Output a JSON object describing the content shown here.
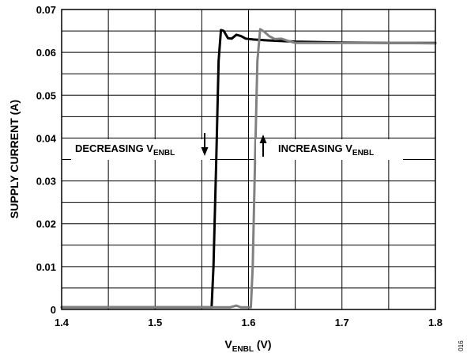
{
  "chart_data": {
    "type": "line",
    "xlabel": {
      "main": "V",
      "sub": "ENBL",
      "suffix": " (V)"
    },
    "ylabel": "SUPPLY CURRENT (A)",
    "xlim": [
      1.4,
      1.8
    ],
    "ylim": [
      0,
      0.07
    ],
    "x_ticks": [
      1.4,
      1.5,
      1.6,
      1.7,
      1.8
    ],
    "x_tick_labels": [
      "1.4",
      "1.5",
      "1.6",
      "1.7",
      "1.8"
    ],
    "y_ticks": [
      0,
      0.01,
      0.02,
      0.03,
      0.04,
      0.05,
      0.06,
      0.07
    ],
    "y_tick_labels": [
      "0",
      "0.01",
      "0.02",
      "0.03",
      "0.04",
      "0.05",
      "0.06",
      "0.07"
    ],
    "grid": {
      "x_step": 0.05,
      "y_step": 0.005
    },
    "series": [
      {
        "color": "#000000",
        "points": [
          [
            1.4,
            0.0005
          ],
          [
            1.5,
            0.0005
          ],
          [
            1.55,
            0.0005
          ],
          [
            1.5605,
            0.0005
          ],
          [
            1.5625,
            0.01
          ],
          [
            1.5655,
            0.035
          ],
          [
            1.568,
            0.058
          ],
          [
            1.5705,
            0.0652
          ],
          [
            1.5735,
            0.065
          ],
          [
            1.578,
            0.0633
          ],
          [
            1.582,
            0.0632
          ],
          [
            1.587,
            0.0641
          ],
          [
            1.592,
            0.0638
          ],
          [
            1.597,
            0.0632
          ],
          [
            1.605,
            0.063
          ],
          [
            1.62,
            0.0628
          ],
          [
            1.65,
            0.0625
          ],
          [
            1.7,
            0.0623
          ],
          [
            1.75,
            0.0622
          ],
          [
            1.8,
            0.0622
          ]
        ]
      },
      {
        "color": "#808080",
        "points": [
          [
            1.4,
            0.0005
          ],
          [
            1.5,
            0.0005
          ],
          [
            1.58,
            0.0005
          ],
          [
            1.587,
            0.0009
          ],
          [
            1.592,
            0.0005
          ],
          [
            1.6,
            0.0005
          ],
          [
            1.6025,
            0.0005
          ],
          [
            1.6045,
            0.01
          ],
          [
            1.607,
            0.035
          ],
          [
            1.6095,
            0.058
          ],
          [
            1.6125,
            0.0654
          ],
          [
            1.617,
            0.0648
          ],
          [
            1.622,
            0.0638
          ],
          [
            1.628,
            0.0631
          ],
          [
            1.635,
            0.0632
          ],
          [
            1.642,
            0.0627
          ],
          [
            1.65,
            0.0622
          ],
          [
            1.7,
            0.0622
          ],
          [
            1.75,
            0.0622
          ],
          [
            1.8,
            0.0621
          ]
        ]
      }
    ],
    "annotations": [
      {
        "main": "DECREASING V",
        "sub": "ENBL",
        "arrow": "down"
      },
      {
        "main": "INCREASING V",
        "sub": "ENBL",
        "arrow": "up"
      }
    ],
    "figure_id": "016"
  }
}
